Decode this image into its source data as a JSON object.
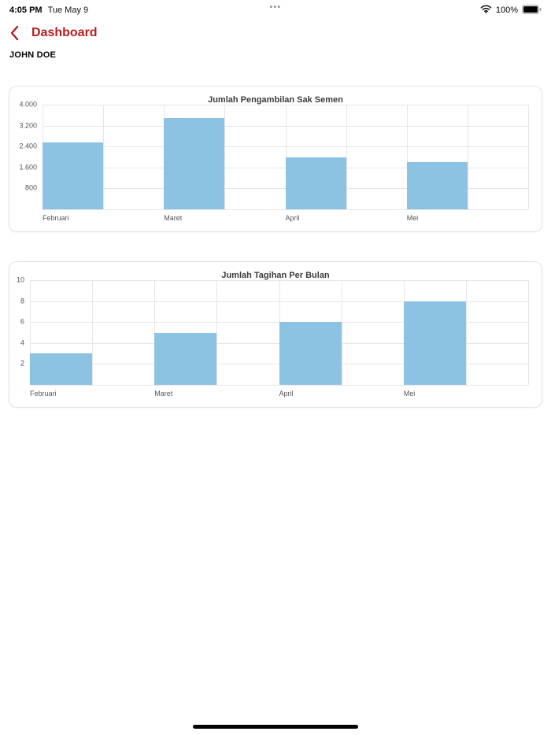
{
  "status_bar": {
    "time": "4:05 PM",
    "date": "Tue May 9",
    "center_dots": "•••",
    "battery_percent": "100%",
    "icons": {
      "wifi": "wifi-icon",
      "battery": "battery-full-icon"
    }
  },
  "nav": {
    "title": "Dashboard",
    "back_icon": "chevron-left-icon"
  },
  "page": {
    "user_name": "JOHN DOE"
  },
  "colors": {
    "accent": "#B91C1C",
    "bar": "#8CC3E2",
    "grid": "#E6E6E6"
  },
  "chart_data": [
    {
      "type": "bar",
      "title": "Jumlah Pengambilan Sak Semen",
      "categories": [
        "Februari",
        "Maret",
        "April",
        "Mei"
      ],
      "values": [
        2550,
        3500,
        2000,
        1800
      ],
      "ylim": [
        0,
        4000
      ],
      "ytick_values": [
        4000,
        3200,
        2400,
        1600,
        800
      ],
      "ytick_labels": [
        "4.000",
        "3.200",
        "2.400",
        "1.600",
        "800"
      ],
      "grid": true,
      "legend": "none",
      "xlabel": "",
      "ylabel": ""
    },
    {
      "type": "bar",
      "title": "Jumlah Tagihan Per Bulan",
      "categories": [
        "Februari",
        "Maret",
        "April",
        "Mei"
      ],
      "values": [
        3,
        5,
        6,
        8
      ],
      "ylim": [
        0,
        10
      ],
      "ytick_values": [
        10,
        8,
        6,
        4,
        2
      ],
      "ytick_labels": [
        "10",
        "8",
        "6",
        "4",
        "2"
      ],
      "grid": true,
      "legend": "none",
      "xlabel": "",
      "ylabel": ""
    }
  ]
}
